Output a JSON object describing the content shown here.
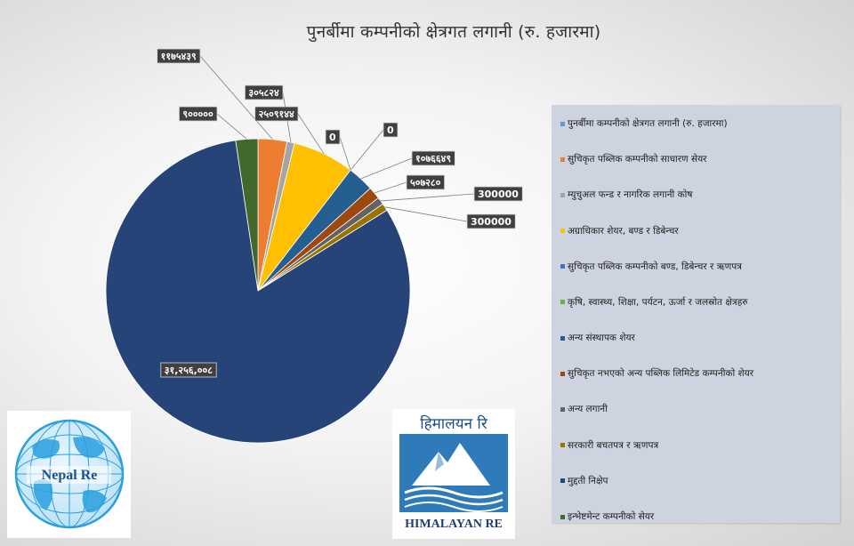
{
  "chart_data": {
    "type": "pie",
    "title": "पुनर्बीमा कम्पनीको क्षेत्रगत लगानी (रु. हजारमा)",
    "legend_position": "right",
    "slices": [
      {
        "name": "पुनर्बीमा कम्पनीको क्षेत्रगत लगानी (रु. हजारमा)",
        "value": 0,
        "color": "#5b9bd5",
        "label": ""
      },
      {
        "name": "सुचिकृत पब्लिक कम्पनीको साधारण सेयर",
        "value": 1175439,
        "color": "#ed7d31",
        "label": "११७५४३९"
      },
      {
        "name": "म्युचुअल फन्ड र नागरिक लगानी कोष",
        "value": 305824,
        "color": "#a5a5a5",
        "label": "३०५८२४"
      },
      {
        "name": "अग्राधिकार शेयर, बण्ड र डिबेन्चर",
        "value": 2509144,
        "color": "#ffc000",
        "label": "२५०९१४४"
      },
      {
        "name": "सुचिकृत पब्लिक कम्पनीको बण्ड, डिबेन्चर र ऋणपत्र",
        "value": 0,
        "color": "#4472c4",
        "label": "0"
      },
      {
        "name": "कृषि, स्वास्थ्य, शिक्षा, पर्यटन, ऊर्जा र जलस्रोत क्षेत्रहरु",
        "value": 0,
        "color": "#70ad47",
        "label": "0"
      },
      {
        "name": "अन्य संस्थापक शेयर",
        "value": 1076649,
        "color": "#255e91",
        "label": "१०७६६४९"
      },
      {
        "name": "सुचिकृत नभएको अन्य पब्लिक लिमिटेड कम्पनीको शेयर",
        "value": 507280,
        "color": "#9e480e",
        "label": "५०७२८०"
      },
      {
        "name": "अन्य लगानी",
        "value": 300000,
        "color": "#636363",
        "label": "300000"
      },
      {
        "name": "सरकारी बचतपत्र र ऋणपत्र",
        "value": 300000,
        "color": "#997300",
        "label": "300000"
      },
      {
        "name": "मुद्दती निक्षेप",
        "value": 31256008,
        "color": "#264478",
        "label": "३१,२५६,००८"
      },
      {
        "name": "इन्भेष्टमेन्ट कम्पनीको सेयर",
        "value": 900000,
        "color": "#43682b",
        "label": "९०००००"
      }
    ]
  },
  "logos": {
    "nepal_re": {
      "text": "Nepal Re"
    },
    "himalayan_re": {
      "top_text": "हिमालयन रि",
      "bottom_text": "HIMALAYAN RE"
    }
  }
}
